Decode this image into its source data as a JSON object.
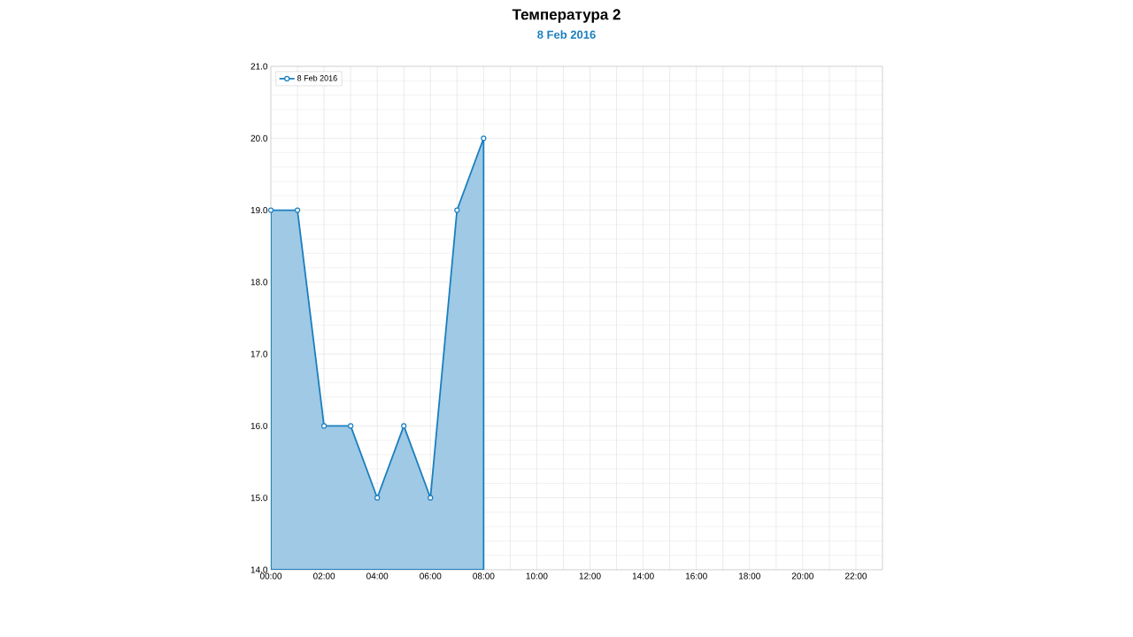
{
  "chart_data": {
    "type": "area",
    "title": "Температура 2",
    "subtitle": "8 Feb 2016",
    "x": [
      0,
      1,
      2,
      3,
      4,
      5,
      6,
      7,
      8
    ],
    "series": [
      {
        "name": "8 Feb 2016",
        "color": "#1a7fbf",
        "values": [
          19,
          19,
          16,
          16,
          15,
          16,
          15,
          19,
          20
        ]
      }
    ],
    "xlim": [
      0,
      23
    ],
    "xticks": [
      {
        "value": 0,
        "label": "00:00"
      },
      {
        "value": 1,
        "label": null
      },
      {
        "value": 2,
        "label": "02:00"
      },
      {
        "value": 3,
        "label": null
      },
      {
        "value": 4,
        "label": "04:00"
      },
      {
        "value": 5,
        "label": null
      },
      {
        "value": 6,
        "label": "06:00"
      },
      {
        "value": 7,
        "label": null
      },
      {
        "value": 8,
        "label": "08:00"
      },
      {
        "value": 9,
        "label": null
      },
      {
        "value": 10,
        "label": "10:00"
      },
      {
        "value": 11,
        "label": null
      },
      {
        "value": 12,
        "label": "12:00"
      },
      {
        "value": 13,
        "label": null
      },
      {
        "value": 14,
        "label": "14:00"
      },
      {
        "value": 15,
        "label": null
      },
      {
        "value": 16,
        "label": "16:00"
      },
      {
        "value": 17,
        "label": null
      },
      {
        "value": 18,
        "label": "18:00"
      },
      {
        "value": 19,
        "label": null
      },
      {
        "value": 20,
        "label": "20:00"
      },
      {
        "value": 21,
        "label": null
      },
      {
        "value": 22,
        "label": "22:00"
      },
      {
        "value": 23,
        "label": null
      }
    ],
    "ylim": [
      14,
      21
    ],
    "yticks": [
      {
        "value": 14,
        "label": "14.0"
      },
      {
        "value": 15,
        "label": "15.0"
      },
      {
        "value": 16,
        "label": "16.0"
      },
      {
        "value": 17,
        "label": "17.0"
      },
      {
        "value": 18,
        "label": "18.0"
      },
      {
        "value": 19,
        "label": "19.0"
      },
      {
        "value": 20,
        "label": "20.0"
      },
      {
        "value": 21,
        "label": "21.0"
      }
    ],
    "grid": true,
    "legend": "top left",
    "marker": "circle",
    "line_style": "solid"
  }
}
